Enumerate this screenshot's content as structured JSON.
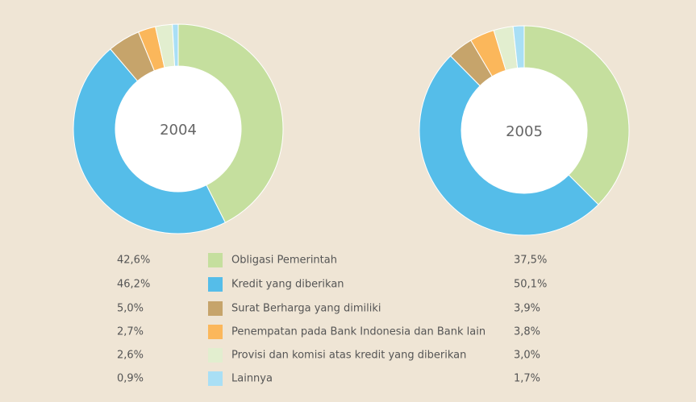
{
  "chart_data": {
    "type": "donut",
    "categories": [
      "Obligasi Pemerintah",
      "Kredit yang diberikan",
      "Surat Berharga yang dimiliki",
      "Penempatan pada Bank Indonesia dan Bank lain",
      "Provisi dan komisi atas kredit yang diberikan",
      "Lainnya"
    ],
    "colors": [
      "#c5df9e",
      "#55bde9",
      "#c6a46b",
      "#fbb75b",
      "#e2eecf",
      "#a9dff5"
    ],
    "series": [
      {
        "name": "2004",
        "values": [
          42.6,
          46.2,
          5.0,
          2.7,
          2.6,
          0.9
        ],
        "value_labels": [
          "42,6%",
          "46,2%",
          "5,0%",
          "2,7%",
          "2,6%",
          "0,9%"
        ]
      },
      {
        "name": "2005",
        "values": [
          37.5,
          50.1,
          3.9,
          3.8,
          3.0,
          1.7
        ],
        "value_labels": [
          "37,5%",
          "50,1%",
          "3,9%",
          "3,8%",
          "3,0%",
          "1,7%"
        ]
      }
    ]
  }
}
